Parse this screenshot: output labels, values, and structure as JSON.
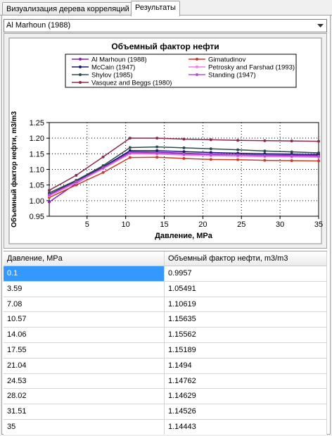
{
  "tabs": [
    {
      "label": "Визуализация дерева корреляций",
      "active": false
    },
    {
      "label": "Результаты",
      "active": true
    }
  ],
  "correlation_select": {
    "value": "Al Marhoun (1988)"
  },
  "chart_data": {
    "type": "line",
    "title": "Объемный фактор нефти",
    "xlabel": "Давление, MPa",
    "ylabel": "Объемный фактор нефти, m3/m3",
    "xlim": [
      0.1,
      35
    ],
    "ylim": [
      0.95,
      1.25
    ],
    "x_ticks": [
      5,
      10,
      15,
      20,
      25,
      30,
      35
    ],
    "y_ticks": [
      0.95,
      1.0,
      1.05,
      1.1,
      1.15,
      1.2,
      1.25
    ],
    "grid": true,
    "legend_position": "top",
    "x": [
      0.1,
      3.59,
      7.08,
      10.57,
      14.06,
      17.55,
      21.04,
      24.53,
      28.02,
      31.51,
      35
    ],
    "series": [
      {
        "name": "Al Marhoun (1988)",
        "color": "#8a1fb8",
        "values": [
          0.9957,
          1.05491,
          1.10619,
          1.15635,
          1.15562,
          1.15189,
          1.1494,
          1.14762,
          1.14629,
          1.14526,
          1.14443
        ]
      },
      {
        "name": "Gimatudinov",
        "color": "#d03a28",
        "values": [
          1.01,
          1.05,
          1.09,
          1.138,
          1.139,
          1.135,
          1.132,
          1.131,
          1.129,
          1.128,
          1.127
        ]
      },
      {
        "name": "McCain (1947)",
        "color": "#1a1a6e",
        "values": [
          1.02,
          1.063,
          1.108,
          1.16,
          1.16,
          1.157,
          1.154,
          1.152,
          1.15,
          1.149,
          1.148
        ]
      },
      {
        "name": "Petrosky and Farshad (1993)",
        "color": "#f07cf0",
        "values": [
          1.015,
          1.057,
          1.102,
          1.15,
          1.149,
          1.146,
          1.144,
          1.142,
          1.141,
          1.14,
          1.139
        ]
      },
      {
        "name": "Shylov (1985)",
        "color": "#2e4a4a",
        "values": [
          1.025,
          1.065,
          1.112,
          1.17,
          1.172,
          1.169,
          1.166,
          1.163,
          1.159,
          1.156,
          1.153
        ]
      },
      {
        "name": "Standing (1947)",
        "color": "#b050d0",
        "values": [
          1.018,
          1.06,
          1.105,
          1.153,
          1.152,
          1.149,
          1.147,
          1.146,
          1.144,
          1.143,
          1.142
        ]
      },
      {
        "name": "Vasquez and Beggs (1980)",
        "color": "#8c2a4a",
        "values": [
          1.033,
          1.081,
          1.14,
          1.2,
          1.2,
          1.197,
          1.195,
          1.193,
          1.192,
          1.191,
          1.19
        ]
      }
    ]
  },
  "table": {
    "headers": [
      "Давление, MPa",
      "Объемный фактор нефти, m3/m3"
    ],
    "rows": [
      [
        "0.1",
        "0.9957"
      ],
      [
        "3.59",
        "1.05491"
      ],
      [
        "7.08",
        "1.10619"
      ],
      [
        "10.57",
        "1.15635"
      ],
      [
        "14.06",
        "1.15562"
      ],
      [
        "17.55",
        "1.15189"
      ],
      [
        "21.04",
        "1.1494"
      ],
      [
        "24.53",
        "1.14762"
      ],
      [
        "28.02",
        "1.14629"
      ],
      [
        "31.51",
        "1.14526"
      ],
      [
        "35",
        "1.14443"
      ]
    ]
  }
}
